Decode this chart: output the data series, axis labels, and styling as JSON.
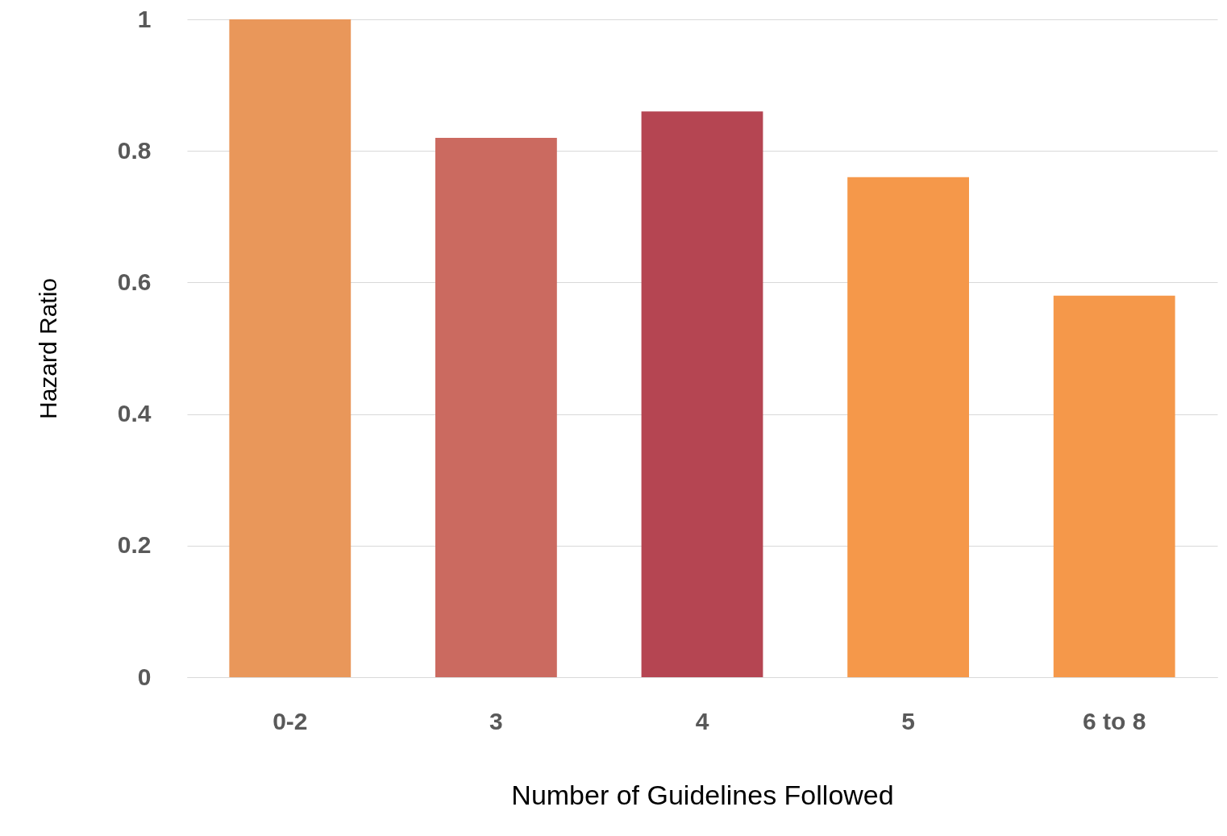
{
  "chart_data": {
    "type": "bar",
    "xlabel": "Number of Guidelines Followed",
    "ylabel": "Hazard Ratio",
    "categories": [
      "0-2",
      "3",
      "4",
      "5",
      "6 to 8"
    ],
    "values": [
      1,
      0.82,
      0.86,
      0.76,
      0.58
    ],
    "colors": [
      "#e9975a",
      "#cb6a60",
      "#b54552",
      "#f5984a",
      "#f5984a"
    ],
    "ylim": [
      0,
      1
    ],
    "yticks": [
      0,
      0.2,
      0.4,
      0.6,
      0.8,
      1
    ],
    "grid": "y"
  }
}
